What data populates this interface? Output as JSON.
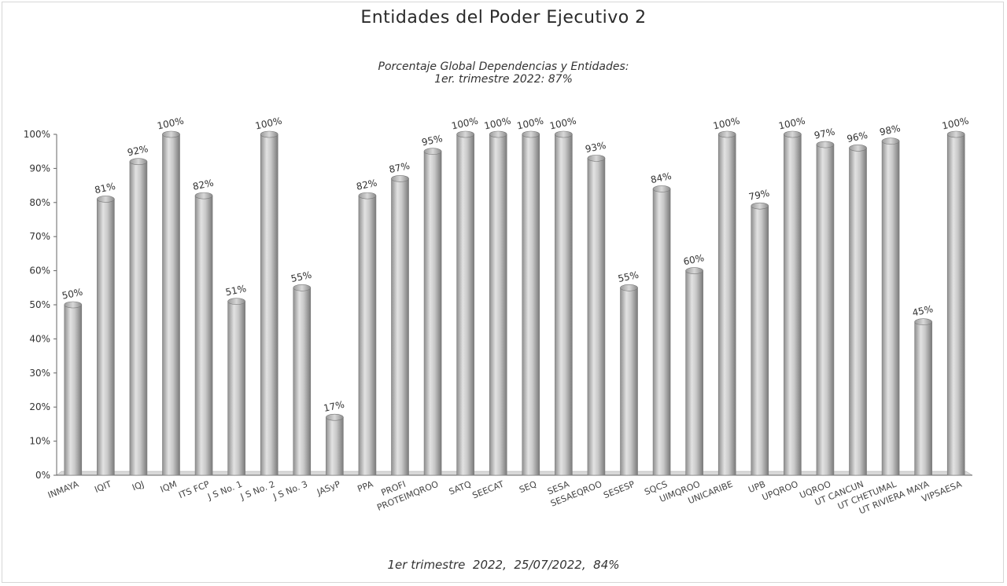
{
  "chart_data": {
    "type": "bar",
    "title": "Entidades del Poder Ejecutivo 2",
    "subtitle_lines": [
      "Porcentaje Global  Dependencias y Entidades:",
      "1er. trimestre 2022: 87%"
    ],
    "footer": "1er trimestre  2022,  25/07/2022,  84%",
    "categories": [
      "INMAYA",
      "IQIT",
      "IQJ",
      "IQM",
      "ITS FCP",
      "J S No. 1",
      "J S No. 2",
      "J S No. 3",
      "JASyP",
      "PPA",
      "PROFI",
      "PROTEIMQROO",
      "SATQ",
      "SEECAT",
      "SEQ",
      "SESA",
      "SESAEQROO",
      "SESESP",
      "SQCS",
      "UIMQROO",
      "UNICARIBE",
      "UPB",
      "UPQROO",
      "UQROO",
      "UT CANCUN",
      "UT CHETUMAL",
      "UT RIVIERA MAYA",
      "VIPSAESA"
    ],
    "values": [
      50,
      81,
      92,
      100,
      82,
      51,
      100,
      55,
      17,
      82,
      87,
      95,
      100,
      100,
      100,
      100,
      93,
      55,
      84,
      60,
      100,
      79,
      100,
      97,
      96,
      98,
      45,
      100
    ],
    "data_labels": [
      "50%",
      "81%",
      "92%",
      "100%",
      "82%",
      "51%",
      "100%",
      "55%",
      "17%",
      "82%",
      "87%",
      "95%",
      "100%",
      "100%",
      "100%",
      "100%",
      "93%",
      "55%",
      "84%",
      "60%",
      "100%",
      "79%",
      "100%",
      "97%",
      "96%",
      "98%",
      "45%",
      "100%"
    ],
    "y_ticks": [
      "0%",
      "10%",
      "20%",
      "30%",
      "40%",
      "50%",
      "60%",
      "70%",
      "80%",
      "90%",
      "100%"
    ],
    "ylim": [
      0,
      100
    ],
    "grid": false,
    "bar_color": "#b9b9b9"
  }
}
